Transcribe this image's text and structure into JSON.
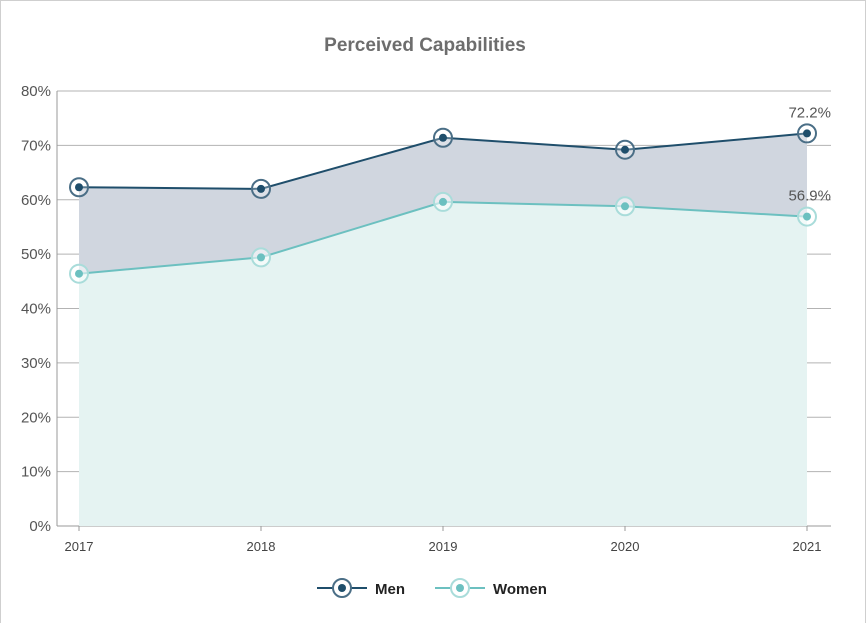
{
  "chart_data": {
    "type": "area",
    "title": "Perceived Capabilities",
    "x": [
      "2017",
      "2018",
      "2019",
      "2020",
      "2021"
    ],
    "ylim": [
      0,
      80
    ],
    "yticks": [
      "0%",
      "10%",
      "20%",
      "30%",
      "40%",
      "50%",
      "60%",
      "70%",
      "80%"
    ],
    "grid": true,
    "legend_position": "bottom",
    "series": [
      {
        "name": "Men",
        "values": [
          62.3,
          62.0,
          71.4,
          69.2,
          72.2
        ],
        "color": "#1f4e6b",
        "fill": "#d0d6df"
      },
      {
        "name": "Women",
        "values": [
          46.4,
          49.4,
          59.6,
          58.8,
          56.9
        ],
        "color": "#6cc0c0",
        "fill": "#e5f3f2"
      }
    ],
    "data_labels": [
      {
        "series": "Men",
        "x": "2021",
        "text": "72.2%"
      },
      {
        "series": "Women",
        "x": "2021",
        "text": "56.9%"
      }
    ]
  }
}
